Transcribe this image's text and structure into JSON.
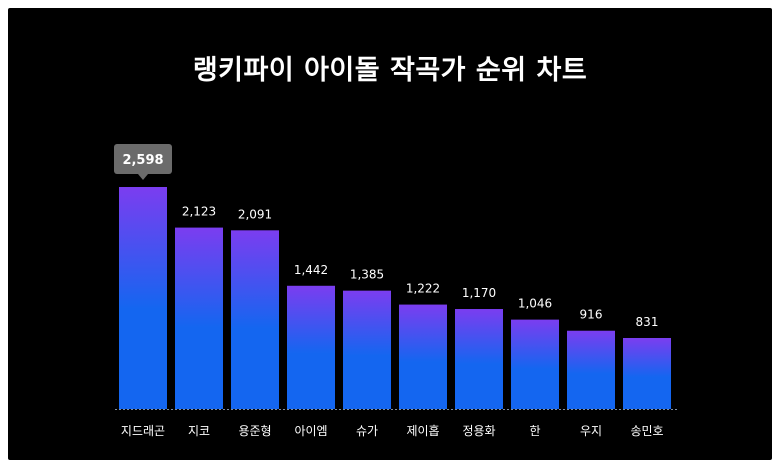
{
  "chart_data": {
    "type": "bar",
    "title": "랭키파이 아이돌 작곡가 순위 차트",
    "categories": [
      "지드래곤",
      "지코",
      "용준형",
      "아이엠",
      "슈가",
      "제이홉",
      "정용화",
      "한",
      "우지",
      "송민호"
    ],
    "values": [
      2598,
      2123,
      2091,
      1442,
      1385,
      1222,
      1170,
      1046,
      916,
      831
    ],
    "value_labels": [
      "2,598",
      "2,123",
      "2,091",
      "1,442",
      "1,385",
      "1,222",
      "1,170",
      "1,046",
      "916",
      "831"
    ],
    "highlighted_index": 0,
    "ylim": [
      0,
      2598
    ],
    "grid": false,
    "legend": "none",
    "colors": {
      "background": "#000000",
      "bar_top": "#7b3df0",
      "bar_bottom": "#1466f0",
      "baseline": "#7f8fa8",
      "text": "#ffffff",
      "highlight_box": "#6b6b6b"
    }
  }
}
